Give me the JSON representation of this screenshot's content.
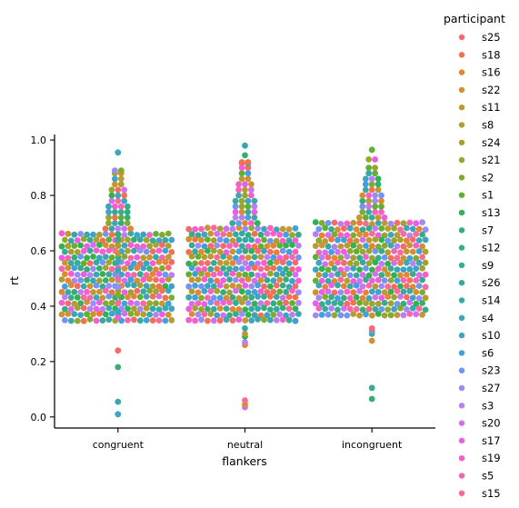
{
  "chart_data": {
    "type": "scatter",
    "subtype": "swarm",
    "xlabel": "flankers",
    "ylabel": "rt",
    "categories": [
      "congruent",
      "neutral",
      "incongruent"
    ],
    "ylim": [
      -0.04,
      1.02
    ],
    "yticks": [
      0.0,
      0.2,
      0.4,
      0.6,
      0.8,
      1.0
    ],
    "ytick_labels": [
      "0.0",
      "0.2",
      "0.4",
      "0.6",
      "0.8",
      "1.0"
    ],
    "grid": false,
    "legend": {
      "title": "participant",
      "placement": "outside-right",
      "entries": [
        {
          "name": "s25",
          "color": "#f7696a"
        },
        {
          "name": "s18",
          "color": "#f3724c"
        },
        {
          "name": "s16",
          "color": "#e48533"
        },
        {
          "name": "s22",
          "color": "#d48f31"
        },
        {
          "name": "s11",
          "color": "#c69633"
        },
        {
          "name": "s8",
          "color": "#b89c32"
        },
        {
          "name": "s24",
          "color": "#a8a132"
        },
        {
          "name": "s21",
          "color": "#97a631"
        },
        {
          "name": "s2",
          "color": "#82aa31"
        },
        {
          "name": "s1",
          "color": "#60b032"
        },
        {
          "name": "s13",
          "color": "#33b14f"
        },
        {
          "name": "s7",
          "color": "#35ae76"
        },
        {
          "name": "s12",
          "color": "#36ac8b"
        },
        {
          "name": "s9",
          "color": "#37aa98"
        },
        {
          "name": "s26",
          "color": "#38a8a3"
        },
        {
          "name": "s14",
          "color": "#39a7ae"
        },
        {
          "name": "s4",
          "color": "#3ba5b9"
        },
        {
          "name": "s10",
          "color": "#3da3c7"
        },
        {
          "name": "s6",
          "color": "#41a0dd"
        },
        {
          "name": "s23",
          "color": "#6f96f0"
        },
        {
          "name": "s27",
          "color": "#9b8bf4"
        },
        {
          "name": "s3",
          "color": "#b97ff4"
        },
        {
          "name": "s20",
          "color": "#d26ff1"
        },
        {
          "name": "s17",
          "color": "#ea5ee6"
        },
        {
          "name": "s19",
          "color": "#f55ecf"
        },
        {
          "name": "s5",
          "color": "#f664b5"
        },
        {
          "name": "s15",
          "color": "#f76a9c"
        }
      ]
    },
    "series": [
      {
        "category": "congruent",
        "body_range": [
          0.34,
          0.66
        ],
        "values": [
          0.01,
          0.055,
          0.18,
          0.24,
          0.36,
          0.38,
          0.41,
          0.44,
          0.47,
          0.5,
          0.53,
          0.56,
          0.59,
          0.62,
          0.64,
          0.66,
          0.68,
          0.7,
          0.72,
          0.74,
          0.76,
          0.78,
          0.8,
          0.82,
          0.84,
          0.86,
          0.88,
          0.89,
          0.955
        ]
      },
      {
        "category": "neutral",
        "body_range": [
          0.34,
          0.68
        ],
        "values": [
          0.035,
          0.045,
          0.06,
          0.26,
          0.27,
          0.29,
          0.3,
          0.32,
          0.7,
          0.72,
          0.74,
          0.76,
          0.78,
          0.8,
          0.82,
          0.84,
          0.86,
          0.88,
          0.9,
          0.915,
          0.92,
          0.945,
          0.98
        ]
      },
      {
        "category": "incongruent",
        "body_range": [
          0.35,
          0.7
        ],
        "values": [
          0.065,
          0.105,
          0.275,
          0.3,
          0.31,
          0.32,
          0.72,
          0.74,
          0.76,
          0.78,
          0.8,
          0.82,
          0.84,
          0.86,
          0.88,
          0.9,
          0.93,
          0.965
        ]
      }
    ]
  }
}
